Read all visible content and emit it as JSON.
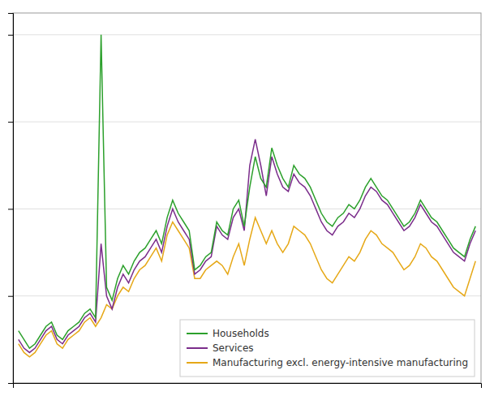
{
  "chart_data": {
    "type": "line",
    "categories": [
      null,
      null,
      null,
      null,
      null,
      null,
      null,
      null,
      null,
      null,
      null,
      null,
      null,
      null,
      null,
      null,
      null,
      null,
      null,
      null,
      null,
      null,
      null,
      null,
      null,
      null,
      null,
      null,
      null,
      null,
      null,
      null,
      null,
      null,
      null,
      null,
      null,
      null,
      null,
      null,
      null,
      null,
      null,
      null,
      null,
      null,
      null,
      null,
      null,
      null,
      null,
      null,
      null,
      null,
      null,
      null,
      null,
      null,
      null,
      null,
      null,
      null,
      null,
      null,
      null,
      null,
      null,
      null,
      null,
      null,
      null,
      null,
      null,
      null,
      null,
      null,
      null,
      null,
      null,
      null,
      null,
      null,
      null,
      null
    ],
    "series": [
      {
        "name": "Households",
        "color": "#2ca02c",
        "values": [
          32,
          30,
          28,
          29,
          31,
          33,
          34,
          31,
          30,
          32,
          33,
          34,
          36,
          37,
          35,
          100,
          42,
          39,
          44,
          47,
          45,
          48,
          50,
          51,
          53,
          55,
          52,
          58,
          62,
          59,
          57,
          55,
          46,
          47,
          49,
          50,
          57,
          55,
          54,
          60,
          62,
          56,
          65,
          72,
          67,
          65,
          74,
          70,
          67,
          65,
          70,
          68,
          67,
          65,
          62,
          59,
          57,
          56,
          58,
          59,
          61,
          60,
          62,
          65,
          67,
          65,
          63,
          62,
          60,
          58,
          56,
          57,
          59,
          62,
          60,
          58,
          57,
          55,
          53,
          51,
          50,
          49,
          53,
          56
        ]
      },
      {
        "name": "Services",
        "color": "#7b2d8b",
        "values": [
          30,
          28,
          27,
          28,
          30,
          32,
          33,
          30,
          29,
          31,
          32,
          33,
          35,
          36,
          34,
          52,
          40,
          37,
          42,
          45,
          43,
          46,
          48,
          49,
          51,
          53,
          50,
          56,
          60,
          57,
          55,
          53,
          45,
          46,
          48,
          49,
          56,
          54,
          53,
          58,
          60,
          55,
          70,
          76,
          70,
          63,
          72,
          68,
          65,
          64,
          68,
          66,
          65,
          63,
          60,
          57,
          55,
          54,
          56,
          57,
          59,
          58,
          60,
          63,
          65,
          64,
          62,
          61,
          59,
          57,
          55,
          56,
          58,
          61,
          59,
          57,
          56,
          54,
          52,
          50,
          49,
          48,
          52,
          55
        ]
      },
      {
        "name": "Manufacturing excl. energy-intensive manufacturing",
        "color": "#e6a817",
        "values": [
          29,
          27,
          26,
          27,
          29,
          31,
          32,
          29,
          28,
          30,
          31,
          32,
          34,
          35,
          33,
          35,
          38,
          37,
          40,
          42,
          41,
          44,
          46,
          47,
          49,
          51,
          48,
          54,
          57,
          55,
          53,
          51,
          44,
          44,
          46,
          47,
          48,
          47,
          45,
          49,
          52,
          47,
          53,
          58,
          55,
          52,
          55,
          52,
          50,
          52,
          56,
          55,
          54,
          52,
          49,
          46,
          44,
          43,
          45,
          47,
          49,
          48,
          50,
          53,
          55,
          54,
          52,
          51,
          50,
          48,
          46,
          47,
          49,
          52,
          51,
          49,
          48,
          46,
          44,
          42,
          41,
          40,
          44,
          48
        ]
      }
    ],
    "ylim": [
      20,
      105
    ],
    "yticks": [
      20,
      40,
      60,
      80,
      100
    ],
    "grid": true,
    "legend": "lower right",
    "tick_labels": false
  }
}
